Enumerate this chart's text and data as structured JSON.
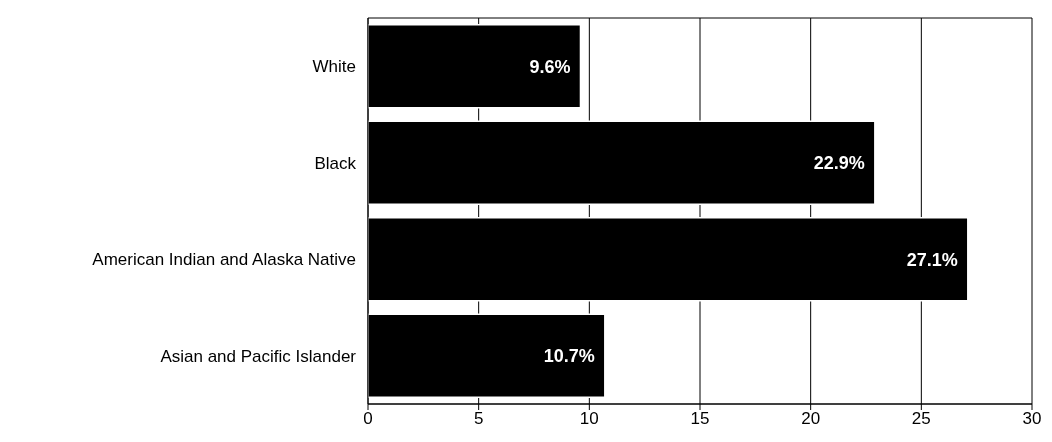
{
  "chart_data": {
    "type": "bar",
    "orientation": "horizontal",
    "categories": [
      "White",
      "Black",
      "American Indian and Alaska Native",
      "Asian and Pacific Islander"
    ],
    "values": [
      9.6,
      22.9,
      27.1,
      10.7
    ],
    "value_labels": [
      "9.6%",
      "22.9%",
      "27.1%",
      "10.7%"
    ],
    "color": "#000000",
    "xlim": [
      0,
      30
    ],
    "xticks": [
      0,
      5,
      10,
      15,
      20,
      25,
      30
    ],
    "grid": "x",
    "legend": false
  }
}
